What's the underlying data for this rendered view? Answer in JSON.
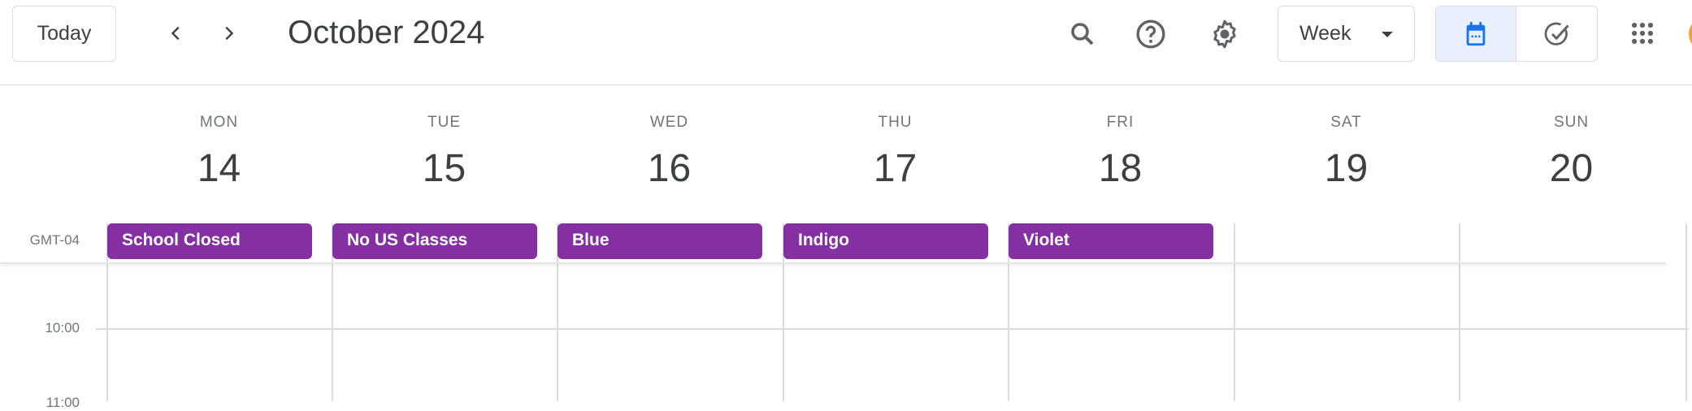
{
  "header": {
    "today_label": "Today",
    "title": "October 2024",
    "view_select": "Week"
  },
  "icons": {
    "prev": "chevron-left-icon",
    "next": "chevron-right-icon",
    "search": "search-icon",
    "help": "help-icon",
    "settings": "gear-icon",
    "calendar": "calendar-icon",
    "tasks": "tasks-icon",
    "apps": "apps-grid-icon"
  },
  "timezone": "GMT-04",
  "days": [
    {
      "name": "MON",
      "num": "14"
    },
    {
      "name": "TUE",
      "num": "15"
    },
    {
      "name": "WED",
      "num": "16"
    },
    {
      "name": "THU",
      "num": "17"
    },
    {
      "name": "FRI",
      "num": "18"
    },
    {
      "name": "SAT",
      "num": "19"
    },
    {
      "name": "SUN",
      "num": "20"
    }
  ],
  "events": [
    {
      "title": "School Closed"
    },
    {
      "title": "No US Classes"
    },
    {
      "title": "Blue"
    },
    {
      "title": "Indigo"
    },
    {
      "title": "Violet"
    }
  ],
  "times": [
    "10:00",
    "11:00"
  ],
  "colors": {
    "event": "#8430a3",
    "accent": "#1a73e8",
    "active_toggle_bg": "#e8f0fe"
  }
}
